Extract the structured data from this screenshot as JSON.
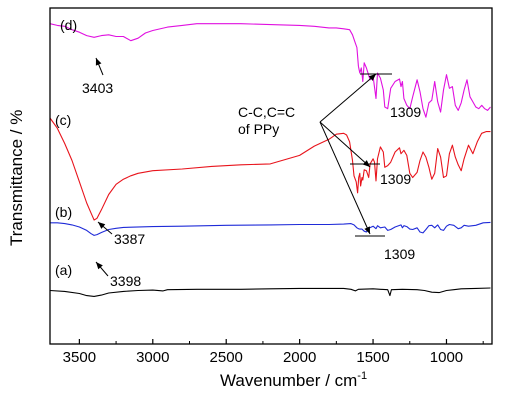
{
  "chart_data": {
    "type": "line",
    "title": "",
    "xlabel": "Wavenumber / cm",
    "xlabel_sup": "-1",
    "ylabel": "Transmittance / %",
    "xlim": [
      3700,
      690
    ],
    "x_reversed": true,
    "x_ticks": [
      3500,
      3000,
      2500,
      2000,
      1500,
      1000
    ],
    "grid": false,
    "legend": "none",
    "series": [
      {
        "name": "(a)",
        "color": "#000000",
        "offset": 0,
        "points": [
          [
            3700,
            -6
          ],
          [
            3600,
            -8
          ],
          [
            3500,
            -13
          ],
          [
            3450,
            -18
          ],
          [
            3400,
            -20
          ],
          [
            3350,
            -17
          ],
          [
            3300,
            -12
          ],
          [
            3200,
            -8
          ],
          [
            3100,
            -6
          ],
          [
            3000,
            -5
          ],
          [
            2930,
            -7
          ],
          [
            2900,
            -4
          ],
          [
            2700,
            -3
          ],
          [
            2400,
            -3
          ],
          [
            2200,
            -2
          ],
          [
            2000,
            -1
          ],
          [
            1800,
            -1
          ],
          [
            1700,
            -1
          ],
          [
            1650,
            -3
          ],
          [
            1620,
            -7
          ],
          [
            1600,
            -3
          ],
          [
            1500,
            -2
          ],
          [
            1450,
            -3
          ],
          [
            1400,
            -4
          ],
          [
            1385,
            -18
          ],
          [
            1375,
            -4
          ],
          [
            1300,
            -3
          ],
          [
            1200,
            -4
          ],
          [
            1150,
            -6
          ],
          [
            1100,
            -10
          ],
          [
            1050,
            -11
          ],
          [
            1000,
            -6
          ],
          [
            950,
            -4
          ],
          [
            900,
            -2
          ],
          [
            800,
            -1
          ],
          [
            700,
            0
          ]
        ]
      },
      {
        "name": "(b)",
        "color": "#1f2bd8",
        "offset": 0,
        "points": [
          [
            3700,
            10
          ],
          [
            3650,
            10
          ],
          [
            3600,
            8
          ],
          [
            3550,
            5
          ],
          [
            3500,
            0
          ],
          [
            3450,
            -8
          ],
          [
            3420,
            -16
          ],
          [
            3400,
            -20
          ],
          [
            3380,
            -18
          ],
          [
            3350,
            -13
          ],
          [
            3300,
            -6
          ],
          [
            3250,
            -3
          ],
          [
            3200,
            -1
          ],
          [
            3000,
            1
          ],
          [
            2800,
            2
          ],
          [
            2500,
            4
          ],
          [
            2200,
            5
          ],
          [
            2000,
            6
          ],
          [
            1800,
            6
          ],
          [
            1700,
            7
          ],
          [
            1650,
            8
          ],
          [
            1630,
            5
          ],
          [
            1610,
            -2
          ],
          [
            1600,
            -4
          ],
          [
            1590,
            -5
          ],
          [
            1575,
            -5
          ],
          [
            1560,
            -10
          ],
          [
            1545,
            -12
          ],
          [
            1530,
            -3
          ],
          [
            1500,
            2
          ],
          [
            1480,
            -4
          ],
          [
            1470,
            3
          ],
          [
            1450,
            -2
          ],
          [
            1420,
            0
          ],
          [
            1400,
            -8
          ],
          [
            1380,
            -6
          ],
          [
            1350,
            0
          ],
          [
            1310,
            5
          ],
          [
            1300,
            -2
          ],
          [
            1290,
            3
          ],
          [
            1270,
            1
          ],
          [
            1250,
            -5
          ],
          [
            1230,
            -6
          ],
          [
            1200,
            -2
          ],
          [
            1180,
            -12
          ],
          [
            1160,
            -14
          ],
          [
            1140,
            -6
          ],
          [
            1120,
            3
          ],
          [
            1100,
            4
          ],
          [
            1080,
            -2
          ],
          [
            1060,
            5
          ],
          [
            1040,
            -6
          ],
          [
            1020,
            -8
          ],
          [
            1000,
            2
          ],
          [
            980,
            6
          ],
          [
            950,
            4
          ],
          [
            920,
            -4
          ],
          [
            900,
            -2
          ],
          [
            880,
            4
          ],
          [
            850,
            2
          ],
          [
            800,
            4
          ],
          [
            750,
            10
          ],
          [
            700,
            11
          ]
        ]
      },
      {
        "name": "(c)",
        "color": "#e8141c",
        "offset": 0,
        "points": [
          [
            3700,
            60
          ],
          [
            3650,
            48
          ],
          [
            3600,
            30
          ],
          [
            3550,
            10
          ],
          [
            3500,
            -15
          ],
          [
            3450,
            -40
          ],
          [
            3420,
            -52
          ],
          [
            3400,
            -60
          ],
          [
            3380,
            -58
          ],
          [
            3350,
            -48
          ],
          [
            3300,
            -30
          ],
          [
            3250,
            -18
          ],
          [
            3200,
            -12
          ],
          [
            3150,
            -8
          ],
          [
            3100,
            -5
          ],
          [
            3000,
            -2
          ],
          [
            2800,
            0
          ],
          [
            2600,
            3
          ],
          [
            2400,
            5
          ],
          [
            2200,
            6
          ],
          [
            2000,
            16
          ],
          [
            1900,
            27
          ],
          [
            1800,
            35
          ],
          [
            1750,
            41
          ],
          [
            1700,
            42
          ],
          [
            1680,
            40
          ],
          [
            1660,
            32
          ],
          [
            1640,
            10
          ],
          [
            1630,
            -8
          ],
          [
            1615,
            -15
          ],
          [
            1605,
            -28
          ],
          [
            1598,
            -10
          ],
          [
            1590,
            -5
          ],
          [
            1585,
            -20
          ],
          [
            1575,
            -10
          ],
          [
            1570,
            -13
          ],
          [
            1560,
            -1
          ],
          [
            1545,
            -2
          ],
          [
            1530,
            -10
          ],
          [
            1520,
            6
          ],
          [
            1500,
            12
          ],
          [
            1490,
            8
          ],
          [
            1480,
            -14
          ],
          [
            1470,
            12
          ],
          [
            1450,
            26
          ],
          [
            1430,
            20
          ],
          [
            1420,
            2
          ],
          [
            1400,
            4
          ],
          [
            1380,
            8
          ],
          [
            1350,
            20
          ],
          [
            1320,
            25
          ],
          [
            1310,
            18
          ],
          [
            1290,
            22
          ],
          [
            1270,
            16
          ],
          [
            1250,
            -5
          ],
          [
            1230,
            -10
          ],
          [
            1200,
            -4
          ],
          [
            1180,
            10
          ],
          [
            1160,
            20
          ],
          [
            1140,
            14
          ],
          [
            1120,
            2
          ],
          [
            1110,
            -5
          ],
          [
            1100,
            -12
          ],
          [
            1080,
            -5
          ],
          [
            1060,
            24
          ],
          [
            1040,
            14
          ],
          [
            1020,
            -10
          ],
          [
            1000,
            -8
          ],
          [
            980,
            18
          ],
          [
            960,
            28
          ],
          [
            940,
            14
          ],
          [
            920,
            5
          ],
          [
            900,
            -2
          ],
          [
            880,
            12
          ],
          [
            850,
            28
          ],
          [
            820,
            18
          ],
          [
            790,
            32
          ],
          [
            760,
            42
          ],
          [
            730,
            44
          ],
          [
            700,
            44
          ]
        ]
      },
      {
        "name": "(d)",
        "color": "#e010e0",
        "offset": 0,
        "points": [
          [
            3700,
            38
          ],
          [
            3650,
            36
          ],
          [
            3600,
            35
          ],
          [
            3550,
            31
          ],
          [
            3500,
            28
          ],
          [
            3450,
            24
          ],
          [
            3400,
            22
          ],
          [
            3350,
            24
          ],
          [
            3300,
            25
          ],
          [
            3250,
            23
          ],
          [
            3200,
            23
          ],
          [
            3150,
            18
          ],
          [
            3100,
            21
          ],
          [
            3050,
            27
          ],
          [
            3000,
            30
          ],
          [
            2900,
            34
          ],
          [
            2800,
            36
          ],
          [
            2700,
            38
          ],
          [
            2600,
            38
          ],
          [
            2400,
            38
          ],
          [
            2200,
            37
          ],
          [
            2000,
            36
          ],
          [
            1900,
            35
          ],
          [
            1800,
            33
          ],
          [
            1750,
            33
          ],
          [
            1700,
            32
          ],
          [
            1660,
            31
          ],
          [
            1640,
            25
          ],
          [
            1620,
            15
          ],
          [
            1610,
            10
          ],
          [
            1600,
            -12
          ],
          [
            1590,
            -20
          ],
          [
            1580,
            -14
          ],
          [
            1570,
            -30
          ],
          [
            1560,
            -8
          ],
          [
            1545,
            -14
          ],
          [
            1520,
            -28
          ],
          [
            1500,
            -24
          ],
          [
            1480,
            -50
          ],
          [
            1470,
            -20
          ],
          [
            1450,
            -26
          ],
          [
            1430,
            -40
          ],
          [
            1420,
            -60
          ],
          [
            1400,
            -62
          ],
          [
            1380,
            -38
          ],
          [
            1350,
            -30
          ],
          [
            1320,
            -27
          ],
          [
            1310,
            -36
          ],
          [
            1300,
            -30
          ],
          [
            1290,
            -50
          ],
          [
            1270,
            -58
          ],
          [
            1250,
            -62
          ],
          [
            1230,
            -48
          ],
          [
            1200,
            -28
          ],
          [
            1180,
            -42
          ],
          [
            1160,
            -62
          ],
          [
            1140,
            -72
          ],
          [
            1120,
            -55
          ],
          [
            1100,
            -52
          ],
          [
            1080,
            -30
          ],
          [
            1060,
            -54
          ],
          [
            1040,
            -66
          ],
          [
            1020,
            -40
          ],
          [
            1000,
            -22
          ],
          [
            980,
            -38
          ],
          [
            960,
            -36
          ],
          [
            940,
            -58
          ],
          [
            920,
            -64
          ],
          [
            900,
            -55
          ],
          [
            880,
            -40
          ],
          [
            860,
            -28
          ],
          [
            840,
            -48
          ],
          [
            820,
            -54
          ],
          [
            800,
            -60
          ],
          [
            780,
            -62
          ],
          [
            760,
            -58
          ],
          [
            740,
            -62
          ],
          [
            720,
            -64
          ],
          [
            700,
            -60
          ]
        ]
      }
    ],
    "curve_labels": [
      "(a)",
      "(b)",
      "(c)",
      "(d)"
    ],
    "annotations": {
      "d_peak": "3403",
      "c_peak": "3387",
      "a_peak": "3398",
      "ppy_line1": "C-C,C=C",
      "ppy_line2": "of PPy",
      "mark_d": "1309",
      "mark_c": "1309",
      "mark_b": "1309"
    },
    "colors": {
      "a": "#000000",
      "b": "#1f2bd8",
      "c": "#e8141c",
      "d": "#e010e0"
    }
  }
}
